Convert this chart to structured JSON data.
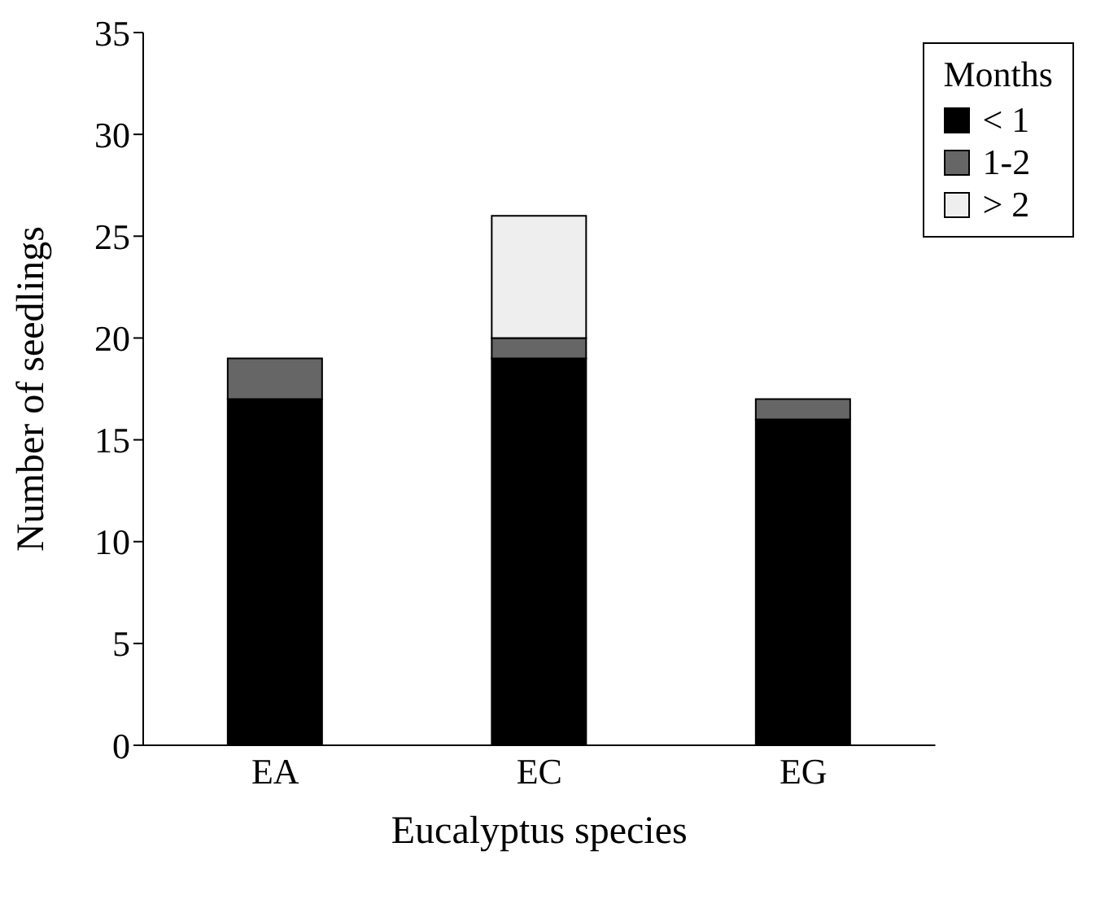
{
  "chart_data": {
    "type": "bar",
    "xlabel": "Eucalyptus species",
    "ylabel": "Number of seedlings",
    "legend_title": "Months",
    "categories": [
      "EA",
      "EC",
      "EG"
    ],
    "stacked": true,
    "series": [
      {
        "name": "< 1",
        "color": "#000000",
        "values": [
          17,
          19,
          16
        ]
      },
      {
        "name": "1-2",
        "color": "#666666",
        "values": [
          2,
          1,
          1
        ]
      },
      {
        "name": "> 2",
        "color": "#eeeeee",
        "values": [
          0,
          6,
          0
        ]
      }
    ],
    "ylim": [
      0,
      35
    ],
    "yticks": [
      0,
      5,
      10,
      15,
      20,
      25,
      30,
      35
    ],
    "grid": false,
    "legend": "top right"
  }
}
